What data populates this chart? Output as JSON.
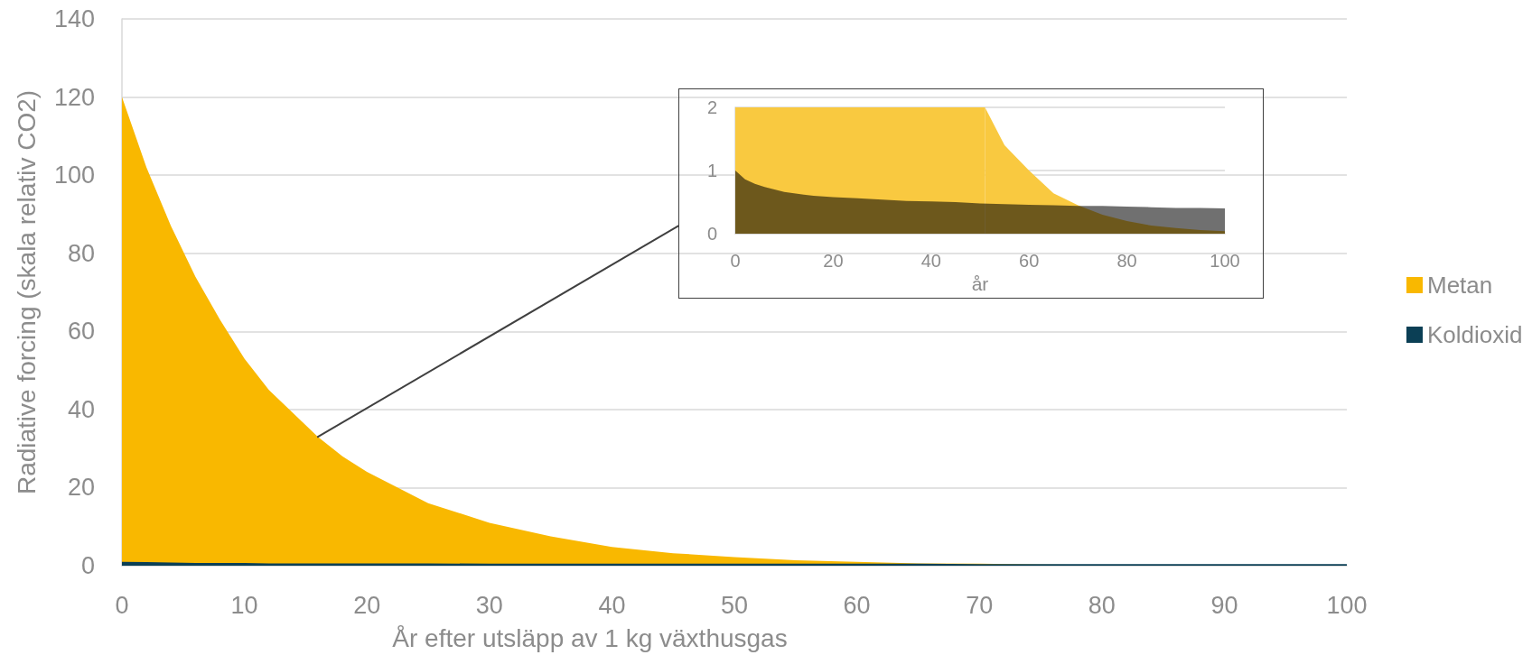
{
  "chart_data": [
    {
      "type": "area",
      "xlabel": "År efter utsläpp av 1 kg växthusgas",
      "ylabel": "Radiative forcing (skala relativ CO2)",
      "x": [
        0,
        2,
        4,
        6,
        8,
        10,
        12,
        14,
        16,
        18,
        20,
        25,
        30,
        35,
        40,
        45,
        50,
        55,
        60,
        65,
        70,
        75,
        80,
        85,
        90,
        95,
        100
      ],
      "series": [
        {
          "name": "Metan",
          "color": "#f9b800",
          "values": [
            120,
            102,
            87,
            74,
            63,
            53,
            45,
            39,
            33,
            28,
            24,
            16,
            11,
            7.5,
            4.8,
            3.2,
            2.2,
            1.4,
            1.0,
            0.6,
            0.5,
            0.3,
            0.2,
            0.1,
            0.1,
            0.1,
            0.0
          ]
        },
        {
          "name": "Koldioxid",
          "color": "#0b3f55",
          "values": [
            1.0,
            0.9,
            0.8,
            0.7,
            0.7,
            0.7,
            0.6,
            0.6,
            0.6,
            0.6,
            0.6,
            0.6,
            0.5,
            0.5,
            0.5,
            0.5,
            0.5,
            0.5,
            0.5,
            0.5,
            0.4,
            0.4,
            0.4,
            0.4,
            0.4,
            0.4,
            0.4
          ]
        }
      ],
      "xlim": [
        0,
        100
      ],
      "xticks": [
        0,
        10,
        20,
        30,
        40,
        50,
        60,
        70,
        80,
        90,
        100
      ],
      "ylim": [
        0,
        140
      ],
      "yticks": [
        0,
        20,
        40,
        60,
        80,
        100,
        120,
        140
      ],
      "grid": "y",
      "legend": "right"
    },
    {
      "type": "area",
      "xlabel": "år",
      "x": [
        0,
        2,
        4,
        6,
        8,
        10,
        12,
        14,
        16,
        18,
        20,
        25,
        30,
        35,
        40,
        45,
        50,
        55,
        60,
        65,
        70,
        75,
        80,
        85,
        90,
        95,
        100
      ],
      "series": [
        {
          "color": "#f9c940",
          "x": [
            51,
            55,
            60,
            65,
            70,
            75,
            80,
            85,
            90,
            95,
            100
          ],
          "values": [
            2,
            1.4,
            1.0,
            0.64,
            0.45,
            0.3,
            0.2,
            0.13,
            0.09,
            0.06,
            0.04
          ]
        },
        {
          "color": "#000000",
          "values": [
            1.0,
            0.86,
            0.79,
            0.74,
            0.7,
            0.66,
            0.64,
            0.62,
            0.6,
            0.59,
            0.58,
            0.56,
            0.54,
            0.52,
            0.51,
            0.5,
            0.48,
            0.47,
            0.46,
            0.45,
            0.44,
            0.44,
            0.43,
            0.42,
            0.41,
            0.41,
            0.4
          ]
        }
      ],
      "bands": [
        {
          "axis": "x",
          "from": 0,
          "to": 51,
          "color": "#f9c940"
        }
      ],
      "xlim": [
        0,
        100
      ],
      "xticks": [
        0,
        20,
        40,
        60,
        80,
        100
      ],
      "ylim": [
        0,
        2
      ],
      "yticks": [
        0,
        1,
        2
      ],
      "grid": "y"
    }
  ]
}
